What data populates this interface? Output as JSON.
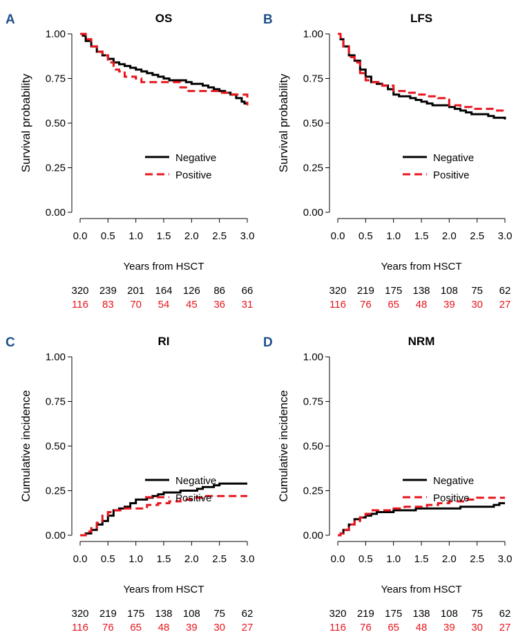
{
  "figure": {
    "x_label": "Years from HSCT",
    "legend": {
      "negative": "Negative",
      "positive": "Positive"
    },
    "colors": {
      "negative": "#000000",
      "positive": "#e8141c",
      "panel_letter": "#1d4f8a"
    }
  },
  "chart_data": [
    {
      "panel": "A",
      "type": "line",
      "title": "OS",
      "ylabel": "Survival probability",
      "xlabel": "Years from HSCT",
      "xlim": [
        0,
        3
      ],
      "ylim": [
        0,
        1
      ],
      "x_ticks": [
        "0.0",
        "0.5",
        "1.0",
        "1.5",
        "2.0",
        "2.5",
        "3.0"
      ],
      "y_ticks": [
        "0.00",
        "0.25",
        "0.50",
        "0.75",
        "1.00"
      ],
      "legend_position": "right-middle",
      "series": [
        {
          "name": "Negative",
          "style": "solid",
          "x": [
            0,
            0.05,
            0.1,
            0.2,
            0.3,
            0.4,
            0.5,
            0.6,
            0.7,
            0.8,
            0.9,
            1.0,
            1.1,
            1.2,
            1.3,
            1.4,
            1.5,
            1.6,
            1.7,
            1.8,
            1.9,
            2.0,
            2.1,
            2.2,
            2.3,
            2.4,
            2.5,
            2.6,
            2.7,
            2.8,
            2.9,
            2.95,
            3.0
          ],
          "y": [
            1.0,
            0.99,
            0.96,
            0.93,
            0.9,
            0.88,
            0.86,
            0.84,
            0.83,
            0.82,
            0.81,
            0.8,
            0.79,
            0.78,
            0.77,
            0.76,
            0.75,
            0.74,
            0.74,
            0.74,
            0.73,
            0.72,
            0.72,
            0.71,
            0.7,
            0.69,
            0.68,
            0.67,
            0.66,
            0.64,
            0.62,
            0.61,
            0.6
          ]
        },
        {
          "name": "Positive",
          "style": "dashed",
          "x": [
            0,
            0.05,
            0.1,
            0.2,
            0.3,
            0.4,
            0.5,
            0.6,
            0.7,
            0.8,
            1.0,
            1.1,
            1.5,
            1.8,
            1.9,
            2.5,
            2.7,
            2.95,
            3.0
          ],
          "y": [
            1.0,
            1.0,
            0.97,
            0.93,
            0.9,
            0.88,
            0.84,
            0.8,
            0.79,
            0.76,
            0.75,
            0.73,
            0.73,
            0.7,
            0.68,
            0.67,
            0.66,
            0.66,
            0.6
          ]
        }
      ],
      "at_risk": {
        "negative": [
          "320",
          "239",
          "201",
          "164",
          "126",
          "86",
          "66"
        ],
        "positive": [
          "116",
          "83",
          "70",
          "54",
          "45",
          "36",
          "31"
        ]
      }
    },
    {
      "panel": "B",
      "type": "line",
      "title": "LFS",
      "ylabel": "Survival probability",
      "xlabel": "Years from HSCT",
      "xlim": [
        0,
        3
      ],
      "ylim": [
        0,
        1
      ],
      "x_ticks": [
        "0.0",
        "0.5",
        "1.0",
        "1.5",
        "2.0",
        "2.5",
        "3.0"
      ],
      "y_ticks": [
        "0.00",
        "0.25",
        "0.50",
        "0.75",
        "1.00"
      ],
      "legend_position": "right-middle",
      "series": [
        {
          "name": "Negative",
          "style": "solid",
          "x": [
            0,
            0.05,
            0.1,
            0.2,
            0.3,
            0.4,
            0.5,
            0.6,
            0.7,
            0.8,
            0.9,
            1.0,
            1.1,
            1.2,
            1.3,
            1.4,
            1.5,
            1.6,
            1.7,
            1.8,
            1.9,
            2.0,
            2.1,
            2.2,
            2.3,
            2.4,
            2.5,
            2.6,
            2.7,
            2.8,
            2.9,
            3.0
          ],
          "y": [
            1.0,
            0.97,
            0.93,
            0.88,
            0.85,
            0.8,
            0.76,
            0.73,
            0.72,
            0.71,
            0.69,
            0.66,
            0.65,
            0.65,
            0.64,
            0.63,
            0.62,
            0.61,
            0.6,
            0.6,
            0.6,
            0.59,
            0.58,
            0.57,
            0.56,
            0.55,
            0.55,
            0.55,
            0.54,
            0.53,
            0.53,
            0.52
          ]
        },
        {
          "name": "Positive",
          "style": "dashed",
          "x": [
            0,
            0.05,
            0.1,
            0.2,
            0.3,
            0.4,
            0.5,
            0.6,
            0.8,
            1.0,
            1.2,
            1.4,
            1.6,
            1.8,
            2.0,
            2.2,
            2.4,
            2.6,
            2.8,
            3.0
          ],
          "y": [
            1.0,
            0.98,
            0.93,
            0.87,
            0.84,
            0.78,
            0.74,
            0.73,
            0.71,
            0.68,
            0.67,
            0.66,
            0.65,
            0.64,
            0.6,
            0.59,
            0.58,
            0.58,
            0.57,
            0.57
          ]
        }
      ],
      "at_risk": {
        "negative": [
          "320",
          "219",
          "175",
          "138",
          "108",
          "75",
          "62"
        ],
        "positive": [
          "116",
          "76",
          "65",
          "48",
          "39",
          "30",
          "27"
        ]
      }
    },
    {
      "panel": "C",
      "type": "line",
      "title": "RI",
      "ylabel": "Cumulative incidence",
      "xlabel": "Years from HSCT",
      "xlim": [
        0,
        3
      ],
      "ylim": [
        0,
        1
      ],
      "x_ticks": [
        "0.0",
        "0.5",
        "1.0",
        "1.5",
        "2.0",
        "2.5",
        "3.0"
      ],
      "y_ticks": [
        "0.00",
        "0.25",
        "0.50",
        "0.75",
        "1.00"
      ],
      "legend_position": "right-middle",
      "series": [
        {
          "name": "Negative",
          "style": "solid",
          "x": [
            0,
            0.1,
            0.2,
            0.3,
            0.4,
            0.5,
            0.6,
            0.7,
            0.8,
            0.9,
            1.0,
            1.1,
            1.2,
            1.3,
            1.4,
            1.5,
            1.6,
            1.7,
            1.8,
            1.9,
            2.0,
            2.1,
            2.2,
            2.3,
            2.4,
            2.5,
            2.7,
            3.0
          ],
          "y": [
            0.0,
            0.01,
            0.03,
            0.06,
            0.08,
            0.11,
            0.14,
            0.15,
            0.16,
            0.18,
            0.2,
            0.2,
            0.21,
            0.22,
            0.23,
            0.24,
            0.24,
            0.24,
            0.25,
            0.25,
            0.25,
            0.26,
            0.27,
            0.27,
            0.28,
            0.29,
            0.29,
            0.29
          ]
        },
        {
          "name": "Positive",
          "style": "dashed",
          "x": [
            0,
            0.1,
            0.2,
            0.3,
            0.4,
            0.5,
            0.6,
            0.8,
            1.0,
            1.2,
            1.4,
            1.6,
            1.8,
            2.0,
            2.2,
            3.0
          ],
          "y": [
            0.0,
            0.02,
            0.04,
            0.07,
            0.11,
            0.13,
            0.14,
            0.15,
            0.15,
            0.17,
            0.18,
            0.19,
            0.2,
            0.21,
            0.22,
            0.22
          ]
        }
      ],
      "at_risk": {
        "negative": [
          "320",
          "219",
          "175",
          "138",
          "108",
          "75",
          "62"
        ],
        "positive": [
          "116",
          "76",
          "65",
          "48",
          "39",
          "30",
          "27"
        ]
      }
    },
    {
      "panel": "D",
      "type": "line",
      "title": "NRM",
      "ylabel": "Cumulative incidence",
      "xlabel": "Years from HSCT",
      "xlim": [
        0,
        3
      ],
      "ylim": [
        0,
        1
      ],
      "x_ticks": [
        "0.0",
        "0.5",
        "1.0",
        "1.5",
        "2.0",
        "2.5",
        "3.0"
      ],
      "y_ticks": [
        "0.00",
        "0.25",
        "0.50",
        "0.75",
        "1.00"
      ],
      "legend_position": "right-middle",
      "series": [
        {
          "name": "Negative",
          "style": "solid",
          "x": [
            0,
            0.05,
            0.1,
            0.2,
            0.3,
            0.4,
            0.5,
            0.6,
            0.7,
            0.8,
            1.0,
            1.2,
            1.4,
            1.6,
            1.8,
            2.0,
            2.2,
            2.4,
            2.6,
            2.8,
            2.9,
            3.0
          ],
          "y": [
            0.0,
            0.01,
            0.03,
            0.06,
            0.09,
            0.1,
            0.11,
            0.12,
            0.13,
            0.13,
            0.14,
            0.14,
            0.15,
            0.15,
            0.15,
            0.15,
            0.16,
            0.16,
            0.16,
            0.17,
            0.18,
            0.18
          ]
        },
        {
          "name": "Positive",
          "style": "dashed",
          "x": [
            0,
            0.05,
            0.1,
            0.2,
            0.3,
            0.4,
            0.5,
            0.6,
            0.8,
            1.0,
            1.2,
            1.6,
            1.8,
            2.0,
            2.3,
            2.5,
            2.8,
            3.0
          ],
          "y": [
            0.0,
            0.01,
            0.03,
            0.06,
            0.08,
            0.1,
            0.12,
            0.14,
            0.14,
            0.15,
            0.16,
            0.17,
            0.18,
            0.19,
            0.2,
            0.21,
            0.21,
            0.21
          ]
        }
      ],
      "at_risk": {
        "negative": [
          "320",
          "219",
          "175",
          "138",
          "108",
          "75",
          "62"
        ],
        "positive": [
          "116",
          "76",
          "65",
          "48",
          "39",
          "30",
          "27"
        ]
      }
    }
  ]
}
